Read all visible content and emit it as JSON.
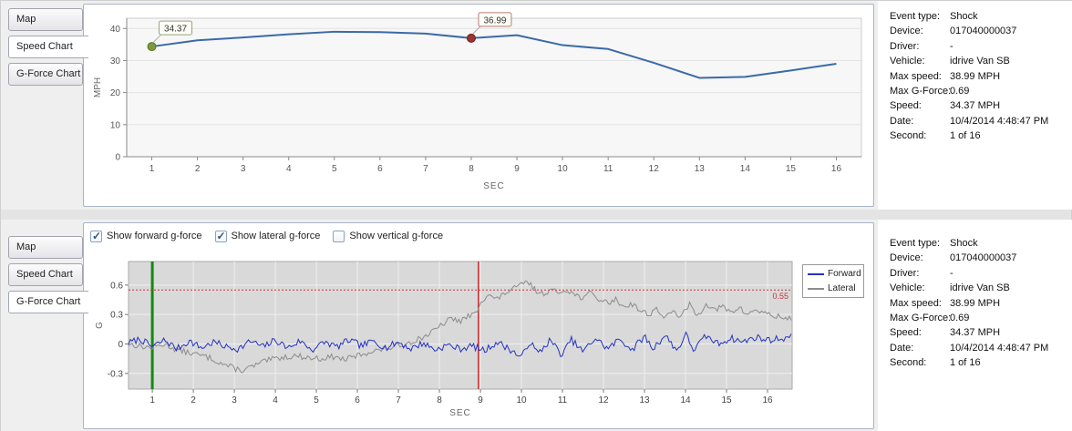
{
  "colors": {
    "speed_line": "#3a6aa8",
    "forward_line": "#2433c0",
    "lateral_line": "#8c8c8c",
    "marker_start": "#7d9b3c",
    "marker_max": "#9c3432",
    "threshold": "#c23b3b",
    "event_start_line": "#128a12",
    "event_trigger_line": "#cc2a2a"
  },
  "tabs": {
    "items": [
      "Map",
      "Speed Chart",
      "G-Force Chart"
    ]
  },
  "top_panel": {
    "active_tab": "Speed Chart"
  },
  "bottom_panel": {
    "active_tab": "G-Force Chart"
  },
  "checkboxes": [
    {
      "label": "Show forward g-force",
      "checked": true
    },
    {
      "label": "Show lateral g-force",
      "checked": true
    },
    {
      "label": "Show vertical g-force",
      "checked": false
    }
  ],
  "details": {
    "rows": [
      {
        "label": "Event type:",
        "value": "Shock"
      },
      {
        "label": "Device:",
        "value": "017040000037"
      },
      {
        "label": "Driver:",
        "value": "-"
      },
      {
        "label": "Vehicle:",
        "value": "idrive Van SB"
      },
      {
        "label": "Max speed:",
        "value": "38.99 MPH"
      },
      {
        "label": "Max G-Force:",
        "value": "0.69"
      },
      {
        "label": "Speed:",
        "value": "34.37 MPH"
      },
      {
        "label": "Date:",
        "value": "10/4/2014 4:48:47 PM"
      },
      {
        "label": "Second:",
        "value": "1 of 16"
      }
    ]
  },
  "chart_data": [
    {
      "type": "line",
      "title": "Speed Chart",
      "xlabel": "SEC",
      "ylabel": "MPH",
      "x": [
        1,
        2,
        3,
        4,
        5,
        6,
        7,
        8,
        9,
        10,
        11,
        12,
        13,
        14,
        15,
        16
      ],
      "series": [
        {
          "name": "Speed",
          "color": "#3a6aa8",
          "values": [
            34.37,
            36.3,
            37.2,
            38.2,
            38.99,
            38.85,
            38.4,
            36.99,
            37.9,
            34.8,
            33.6,
            29.3,
            24.6,
            24.9,
            26.9,
            29.0
          ]
        }
      ],
      "xlim": [
        0.45,
        16.55
      ],
      "ylim": [
        0,
        43.2
      ],
      "yticks": [
        0,
        10,
        20,
        30,
        40
      ],
      "grid": "horizontal",
      "markers": [
        {
          "x": 1,
          "y": 34.37,
          "label": "34.37",
          "fill": "#7d9b3c",
          "stroke": "#5c7428",
          "box": "#99a37b",
          "name": "marker-start"
        },
        {
          "x": 8,
          "y": 36.99,
          "label": "36.99",
          "fill": "#9c3432",
          "stroke": "#6d1f1e",
          "box": "#bb7b74",
          "name": "marker-event"
        }
      ]
    },
    {
      "type": "line",
      "title": "G-Force Chart",
      "xlabel": "SEC",
      "ylabel": "G",
      "xticks": [
        1,
        2,
        3,
        4,
        5,
        6,
        7,
        8,
        9,
        10,
        11,
        12,
        13,
        14,
        15,
        16
      ],
      "xlim": [
        0.42,
        16.6
      ],
      "ylim": [
        -0.46,
        0.84
      ],
      "yticks": [
        -0.3,
        0,
        0.3,
        0.6
      ],
      "grid": "both",
      "legend_position": "right",
      "series": [
        {
          "name": "Forward",
          "color": "#2433c0",
          "noise": 0.035,
          "seed": 7,
          "step": 0.045,
          "keypoints": [
            [
              0.42,
              0.01
            ],
            [
              0.7,
              0.05
            ],
            [
              1,
              -0.03
            ],
            [
              1.3,
              0.04
            ],
            [
              1.6,
              -0.05
            ],
            [
              1.9,
              0.03
            ],
            [
              2.2,
              -0.04
            ],
            [
              2.5,
              0.02
            ],
            [
              2.8,
              -0.03
            ],
            [
              3.1,
              -0.05
            ],
            [
              3.4,
              0.03
            ],
            [
              3.7,
              -0.03
            ],
            [
              4,
              0.04
            ],
            [
              4.3,
              -0.04
            ],
            [
              4.6,
              0.03
            ],
            [
              4.9,
              -0.06
            ],
            [
              5.2,
              0.02
            ],
            [
              5.5,
              -0.03
            ],
            [
              5.8,
              0.04
            ],
            [
              6.1,
              -0.02
            ],
            [
              6.4,
              0.03
            ],
            [
              6.7,
              -0.04
            ],
            [
              7,
              0.02
            ],
            [
              7.3,
              -0.05
            ],
            [
              7.6,
              0.01
            ],
            [
              7.9,
              -0.06
            ],
            [
              8.2,
              -0.01
            ],
            [
              8.5,
              -0.05
            ],
            [
              8.8,
              -0.02
            ],
            [
              9.1,
              -0.07
            ],
            [
              9.4,
              0.02
            ],
            [
              9.7,
              -0.05
            ],
            [
              10,
              -0.14
            ],
            [
              10.2,
              0.03
            ],
            [
              10.4,
              -0.1
            ],
            [
              10.7,
              0.04
            ],
            [
              11,
              -0.12
            ],
            [
              11.2,
              0.05
            ],
            [
              11.5,
              -0.08
            ],
            [
              11.8,
              0.06
            ],
            [
              12.1,
              -0.05
            ],
            [
              12.4,
              0.05
            ],
            [
              12.7,
              -0.06
            ],
            [
              13,
              0.08
            ],
            [
              13.2,
              -0.05
            ],
            [
              13.5,
              0.09
            ],
            [
              13.8,
              -0.07
            ],
            [
              14,
              0.1
            ],
            [
              14.2,
              -0.06
            ],
            [
              14.5,
              0.08
            ],
            [
              14.8,
              0
            ],
            [
              15.1,
              0.06
            ],
            [
              15.4,
              0.02
            ],
            [
              15.7,
              0.07
            ],
            [
              16,
              0.04
            ],
            [
              16.6,
              0.07
            ]
          ]
        },
        {
          "name": "Lateral",
          "color": "#8c8c8c",
          "noise": 0.03,
          "seed": 13,
          "step": 0.045,
          "keypoints": [
            [
              0.42,
              0
            ],
            [
              0.8,
              -0.03
            ],
            [
              1,
              -0.04
            ],
            [
              1.3,
              0
            ],
            [
              1.6,
              -0.06
            ],
            [
              2,
              -0.1
            ],
            [
              2.4,
              -0.14
            ],
            [
              2.7,
              -0.2
            ],
            [
              3,
              -0.25
            ],
            [
              3.2,
              -0.27
            ],
            [
              3.5,
              -0.22
            ],
            [
              3.8,
              -0.17
            ],
            [
              4.1,
              -0.14
            ],
            [
              4.5,
              -0.12
            ],
            [
              4.8,
              -0.14
            ],
            [
              5.1,
              -0.15
            ],
            [
              5.4,
              -0.13
            ],
            [
              5.7,
              -0.16
            ],
            [
              6,
              -0.12
            ],
            [
              6.3,
              -0.08
            ],
            [
              6.7,
              -0.05
            ],
            [
              7,
              -0.02
            ],
            [
              7.3,
              0.02
            ],
            [
              7.6,
              0.07
            ],
            [
              7.9,
              0.14
            ],
            [
              8.1,
              0.21
            ],
            [
              8.3,
              0.26
            ],
            [
              8.5,
              0.23
            ],
            [
              8.7,
              0.28
            ],
            [
              8.9,
              0.31
            ],
            [
              9,
              0.44
            ],
            [
              9.2,
              0.5
            ],
            [
              9.4,
              0.45
            ],
            [
              9.6,
              0.52
            ],
            [
              9.8,
              0.56
            ],
            [
              10,
              0.6
            ],
            [
              10.15,
              0.64
            ],
            [
              10.3,
              0.56
            ],
            [
              10.5,
              0.51
            ],
            [
              10.7,
              0.55
            ],
            [
              10.9,
              0.52
            ],
            [
              11.1,
              0.56
            ],
            [
              11.3,
              0.5
            ],
            [
              11.5,
              0.47
            ],
            [
              11.7,
              0.52
            ],
            [
              11.9,
              0.45
            ],
            [
              12.1,
              0.42
            ],
            [
              12.3,
              0.45
            ],
            [
              12.5,
              0.38
            ],
            [
              12.7,
              0.41
            ],
            [
              12.9,
              0.34
            ],
            [
              13.1,
              0.3
            ],
            [
              13.3,
              0.36
            ],
            [
              13.5,
              0.26
            ],
            [
              13.7,
              0.33
            ],
            [
              13.9,
              0.28
            ],
            [
              14.1,
              0.4
            ],
            [
              14.3,
              0.28
            ],
            [
              14.5,
              0.42
            ],
            [
              14.7,
              0.34
            ],
            [
              14.9,
              0.38
            ],
            [
              15.1,
              0.32
            ],
            [
              15.3,
              0.37
            ],
            [
              15.5,
              0.3
            ],
            [
              15.7,
              0.35
            ],
            [
              15.9,
              0.32
            ],
            [
              16.1,
              0.29
            ],
            [
              16.6,
              0.25
            ]
          ]
        }
      ],
      "vlines": [
        {
          "x": 1,
          "color": "#128a12",
          "width": 3,
          "name": "event-start-line"
        },
        {
          "x": 8.95,
          "color": "#cc2a2a",
          "width": 1.5,
          "name": "event-trigger-line"
        }
      ],
      "hlines": [
        {
          "y": 0.55,
          "label": "0.55",
          "color": "#c23b3b",
          "name": "threshold-line"
        }
      ]
    }
  ]
}
